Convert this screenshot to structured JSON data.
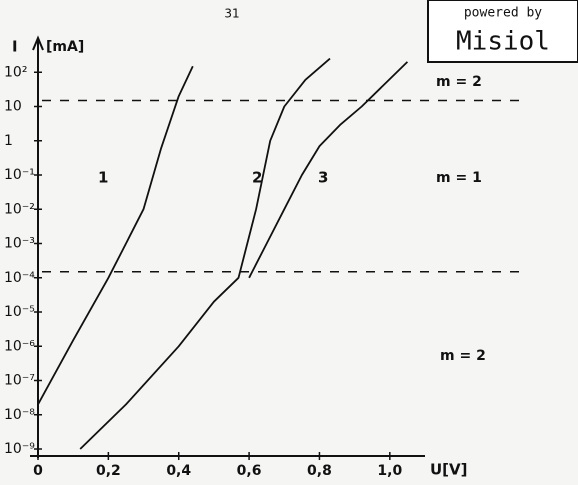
{
  "page_number": "31",
  "badge": {
    "line1": "powered by",
    "line2": "Misiol"
  },
  "chart_data": {
    "type": "line",
    "y_label": "I",
    "y_unit": "[mA]",
    "x_label": "U[V]",
    "ylog": true,
    "xlim": [
      0,
      1.1
    ],
    "ylim": [
      1e-09,
      1000
    ],
    "xticks": [
      0,
      {
        "value": 0.2,
        "label": "0,2"
      },
      {
        "value": 0.4,
        "label": "0,4"
      },
      {
        "value": 0.6,
        "label": "0,6"
      },
      {
        "value": 0.8,
        "label": "0,8"
      },
      {
        "value": 1.0,
        "label": "1,0"
      }
    ],
    "yticks": [
      {
        "value": 100,
        "label": "10²"
      },
      10,
      1,
      {
        "value": 0.1,
        "label": "10⁻¹"
      },
      {
        "value": 0.01,
        "label": "10⁻²"
      },
      {
        "value": 0.001,
        "label": "10⁻³"
      },
      {
        "value": 0.0001,
        "label": "10⁻⁴"
      },
      {
        "value": 1e-05,
        "label": "10⁻⁵"
      },
      {
        "value": 1e-06,
        "label": "10⁻⁶"
      },
      {
        "value": 1e-07,
        "label": "10⁻⁷"
      },
      {
        "value": 1e-08,
        "label": "10⁻⁸"
      },
      {
        "value": 1e-09,
        "label": "10⁻⁹"
      }
    ],
    "series": [
      {
        "name": "1",
        "color": "#111111",
        "x": [
          0,
          0.1,
          0.2,
          0.25,
          0.3,
          0.35,
          0.4,
          0.44
        ],
        "values": [
          2e-08,
          1.5e-06,
          0.0001,
          0.001,
          0.01,
          0.6,
          20,
          150
        ]
      },
      {
        "name": "2",
        "color": "#111111",
        "x": [
          0.12,
          0.25,
          0.4,
          0.5,
          0.57,
          0.62,
          0.66,
          0.7,
          0.76,
          0.83
        ],
        "values": [
          1e-09,
          2e-08,
          1e-06,
          2e-05,
          0.0001,
          0.01,
          1,
          10,
          60,
          250
        ]
      },
      {
        "name": "3",
        "color": "#111111",
        "x": [
          0.6,
          0.65,
          0.7,
          0.75,
          0.8,
          0.86,
          0.92,
          0.98,
          1.05
        ],
        "values": [
          0.0001,
          0.001,
          0.01,
          0.1,
          0.7,
          3,
          10,
          40,
          200
        ]
      }
    ],
    "dashed_lines": [
      15,
      0.00015
    ],
    "annotations": [
      "m = 2",
      "m = 1",
      "m = 2"
    ]
  }
}
